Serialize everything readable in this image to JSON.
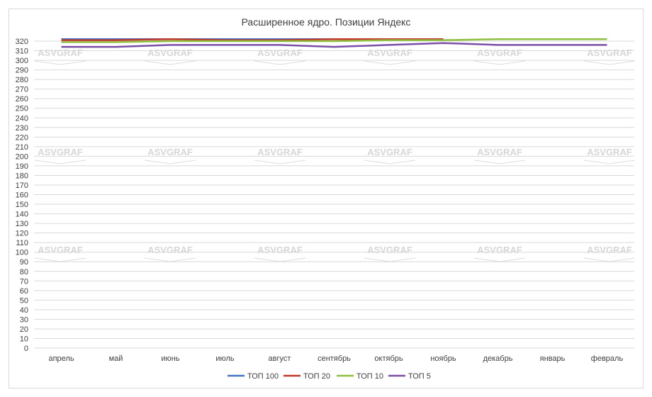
{
  "chart_data": {
    "type": "line",
    "title": "Расширенное ядро. Позиции Яндекс",
    "xlabel": "",
    "ylabel": "",
    "categories": [
      "апрель",
      "май",
      "июнь",
      "июль",
      "август",
      "сентябрь",
      "октябрь",
      "ноябрь",
      "декабрь",
      "январь",
      "февраль"
    ],
    "y_tick_labels": [
      "0",
      "10",
      "20",
      "30",
      "40",
      "50",
      "60",
      "70",
      "80",
      "90",
      "100",
      "110",
      "120",
      "130",
      "140",
      "150",
      "160",
      "170",
      "180",
      "190",
      "200",
      "210",
      "220",
      "230",
      "240",
      "250",
      "260",
      "270",
      "280",
      "290",
      "300",
      "310",
      "320"
    ],
    "series": [
      {
        "name": "ТОП 100",
        "color": "#4472c4",
        "values": [
          322,
          322,
          322,
          322,
          322,
          322,
          322,
          322,
          null,
          null,
          null
        ]
      },
      {
        "name": "ТОП 20",
        "color": "#c0392b",
        "values": [
          321,
          321,
          322,
          321,
          321,
          322,
          322,
          322,
          null,
          null,
          null
        ]
      },
      {
        "name": "ТОП 10",
        "color": "#8fbf3f",
        "values": [
          319,
          319,
          320,
          320,
          320,
          320,
          321,
          321,
          322,
          322,
          322
        ]
      },
      {
        "name": "ТОП 5",
        "color": "#7b4fa8",
        "values": [
          314,
          314,
          316,
          316,
          316,
          314,
          316,
          318,
          316,
          316,
          316
        ]
      }
    ],
    "grid": true,
    "legend": "bottom",
    "watermark": "ASVGRAF"
  }
}
